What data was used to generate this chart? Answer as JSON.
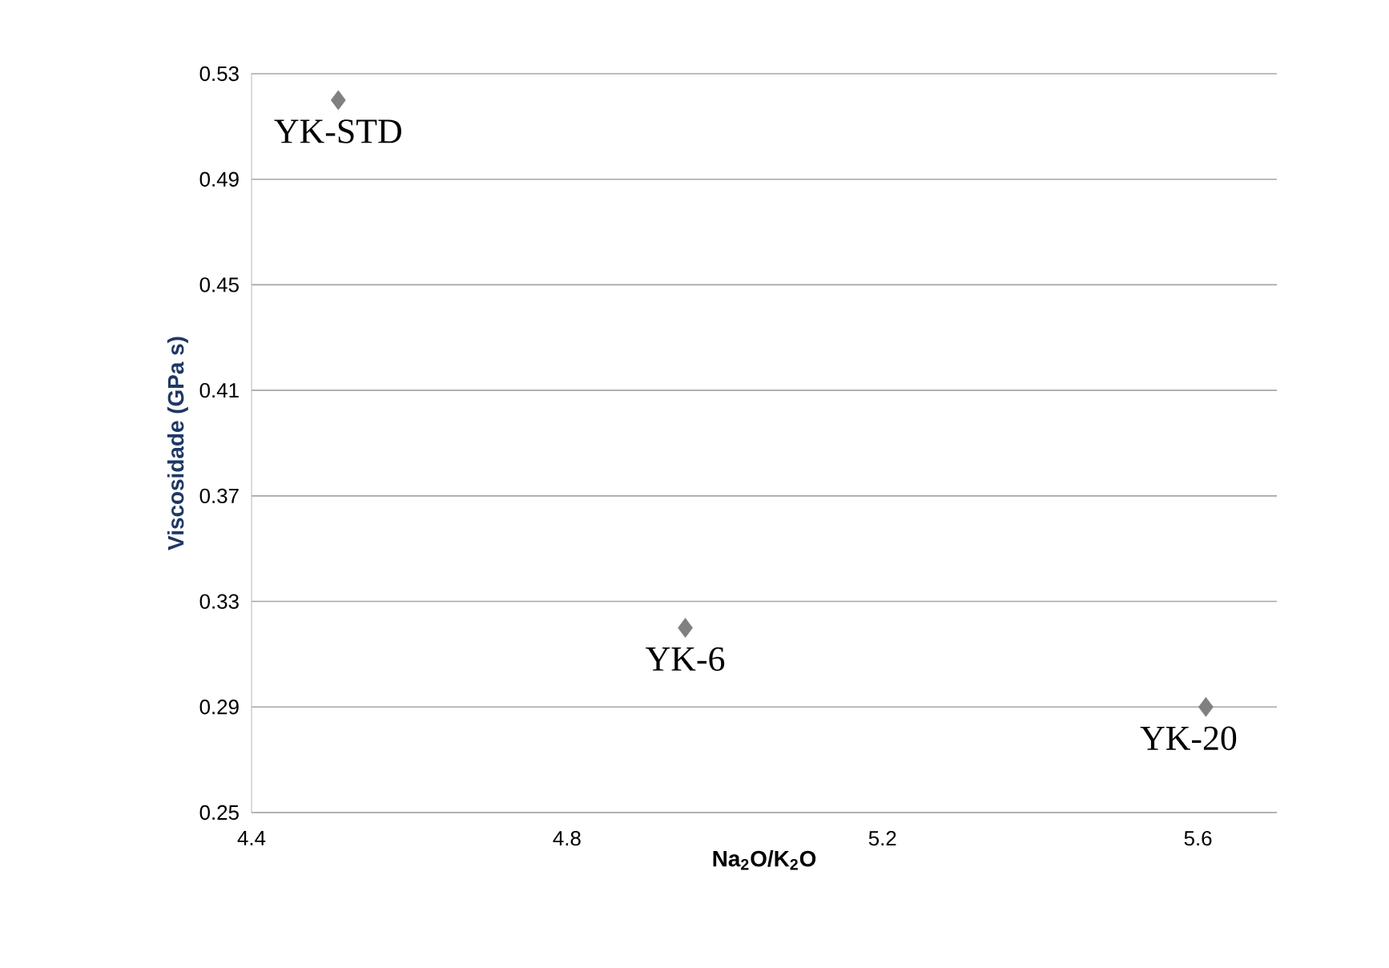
{
  "chart_data": {
    "type": "scatter",
    "xlabel": "Na$_{2}$O/K$_{2}$O",
    "ylabel": "Viscosidade  (GPa s)",
    "x": [
      4.51,
      4.95,
      5.61
    ],
    "series": [
      {
        "color": "#808080",
        "values": [
          0.52,
          0.32,
          0.29
        ]
      }
    ],
    "xlim": [
      4.4,
      5.7
    ],
    "xticks": [
      4.4,
      4.8,
      5.2,
      5.6
    ],
    "ylim": [
      0.25,
      0.53
    ],
    "yticks": [
      0.25,
      0.29,
      0.33,
      0.37,
      0.41,
      0.45,
      0.49,
      0.53
    ],
    "grid": "y",
    "marker": "diamond",
    "annotations": [
      {
        "text": "YK-STD",
        "x": 4.51,
        "y": 0.52
      },
      {
        "text": "YK-6",
        "x": 4.95,
        "y": 0.32
      },
      {
        "text": "YK-20",
        "x": 5.61,
        "y": 0.29
      }
    ]
  }
}
